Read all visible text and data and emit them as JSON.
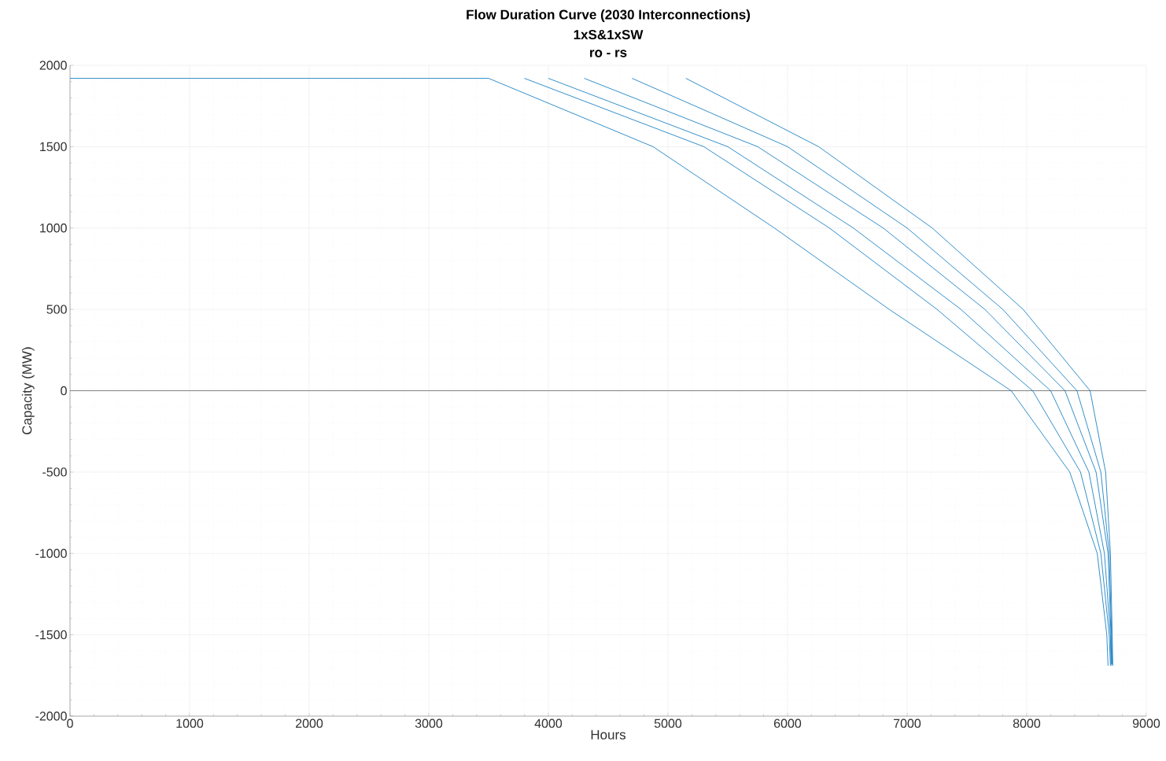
{
  "chart_data": {
    "type": "line",
    "title": "Flow Duration Curve (2030 Interconnections)",
    "subtitle": "1xS&1xSW",
    "annotations": [
      "ro - rs"
    ],
    "xlabel": "Hours",
    "ylabel": "Capacity (MW)",
    "xlim": [
      0,
      9000
    ],
    "ylim": [
      -2000,
      2000
    ],
    "xticks": [
      0,
      1000,
      2000,
      3000,
      4000,
      5000,
      6000,
      7000,
      8000,
      9000
    ],
    "yticks": [
      -2000,
      -1500,
      -1000,
      -500,
      0,
      500,
      1000,
      1500,
      2000
    ],
    "grid": true,
    "line_style": "solid",
    "marker": "none",
    "ref_lines": [
      {
        "axis": "y",
        "value": 0,
        "color": "#808080"
      }
    ],
    "series": [
      {
        "color": "#0072bd",
        "x": [
          0,
          3500,
          4875,
          5890,
          6850,
          7870,
          8360,
          8590,
          8670,
          8680
        ],
        "values": [
          1920,
          1920,
          1500,
          1000,
          500,
          0,
          -500,
          -1000,
          -1500,
          -1690
        ]
      },
      {
        "color": "#0072bd",
        "x": [
          3800,
          5300,
          6350,
          7250,
          8050,
          8450,
          8620,
          8690,
          8700
        ],
        "values": [
          1920,
          1500,
          1000,
          500,
          0,
          -500,
          -1000,
          -1500,
          -1690
        ]
      },
      {
        "color": "#0072bd",
        "x": [
          4000,
          5500,
          6550,
          7450,
          8200,
          8520,
          8650,
          8700,
          8705
        ],
        "values": [
          1920,
          1500,
          1000,
          500,
          0,
          -500,
          -1000,
          -1500,
          -1680
        ]
      },
      {
        "color": "#0072bd",
        "x": [
          4300,
          5750,
          6800,
          7650,
          8320,
          8580,
          8680,
          8705,
          8710
        ],
        "values": [
          1920,
          1500,
          1000,
          500,
          0,
          -500,
          -1000,
          -1500,
          -1690
        ]
      },
      {
        "color": "#0072bd",
        "x": [
          4700,
          6000,
          7000,
          7800,
          8420,
          8620,
          8690,
          8710,
          8715
        ],
        "values": [
          1920,
          1500,
          1000,
          500,
          0,
          -500,
          -1000,
          -1500,
          -1680
        ]
      },
      {
        "color": "#0072bd",
        "x": [
          5150,
          6260,
          7210,
          7970,
          8530,
          8660,
          8700,
          8715,
          8720
        ],
        "values": [
          1920,
          1500,
          1000,
          500,
          0,
          -500,
          -1000,
          -1500,
          -1690
        ]
      }
    ]
  }
}
